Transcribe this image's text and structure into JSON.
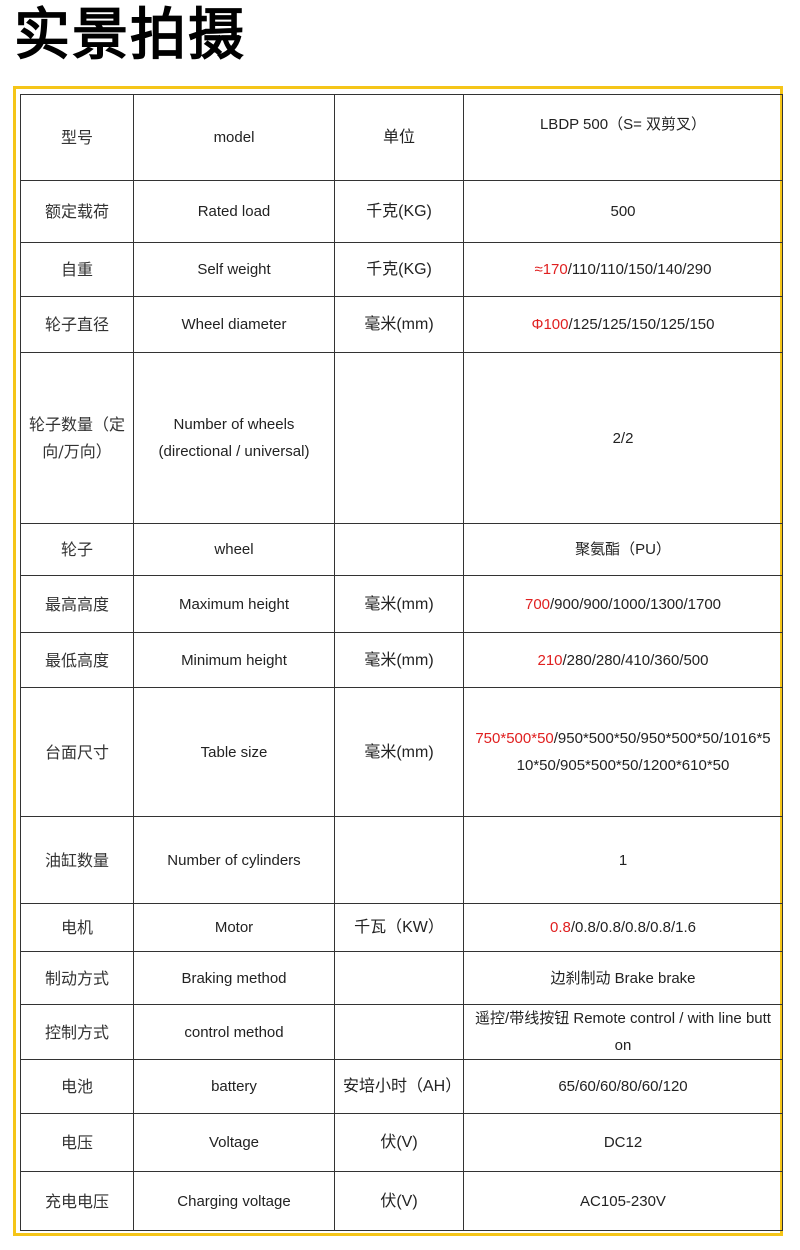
{
  "title": "实景拍摄",
  "colors": {
    "frame": "#f5c518",
    "highlight": "#e02020"
  },
  "rows": [
    {
      "cn": "型号",
      "en": "model",
      "unit": "单位",
      "value_red": "",
      "value": "LBDP 500（S= 双剪叉）"
    },
    {
      "cn": "额定载荷",
      "en": "Rated load",
      "unit": "千克(KG)",
      "value_red": "",
      "value": "500"
    },
    {
      "cn": "自重",
      "en": "Self weight",
      "unit": "千克(KG)",
      "value_red": "≈170",
      "value": "/110/110/150/140/290"
    },
    {
      "cn": "轮子直径",
      "en": "Wheel diameter",
      "unit": "毫米(mm)",
      "value_red": "Φ100",
      "value": "/125/125/150/125/150"
    },
    {
      "cn": "轮子数量（定向/万向）",
      "en": "Number of wheels (directional / universal)",
      "unit": "",
      "value_red": "",
      "value": "2/2"
    },
    {
      "cn": "轮子",
      "en": "wheel",
      "unit": "",
      "value_red": "",
      "value": "聚氨酯（PU）"
    },
    {
      "cn": "最高高度",
      "en": "Maximum height",
      "unit": "毫米(mm)",
      "value_red": "700",
      "value": "/900/900/1000/1300/1700"
    },
    {
      "cn": "最低高度",
      "en": "Minimum height",
      "unit": "毫米(mm)",
      "value_red": "210",
      "value": "/280/280/410/360/500"
    },
    {
      "cn": "台面尺寸",
      "en": "Table size",
      "unit": "毫米(mm)",
      "value_red": "750*500*50",
      "value": "/950*500*50/950*500*50/1016*510*50/905*500*50/1200*610*50"
    },
    {
      "cn": "油缸数量",
      "en": "Number of cylinders",
      "unit": "",
      "value_red": "",
      "value": "1"
    },
    {
      "cn": "电机",
      "en": "Motor",
      "unit": "千瓦（KW）",
      "value_red": "0.8",
      "value": "/0.8/0.8/0.8/0.8/1.6"
    },
    {
      "cn": "制动方式",
      "en": "Braking method",
      "unit": "",
      "value_red": "",
      "value": "边刹制动 Brake brake"
    },
    {
      "cn": "控制方式",
      "en": "control method",
      "unit": "",
      "value_red": "",
      "value": "遥控/带线按钮 Remote control / with line button"
    },
    {
      "cn": "电池",
      "en": "battery",
      "unit": "安培小时（AH）",
      "value_red": "",
      "value": "65/60/60/80/60/120"
    },
    {
      "cn": "电压",
      "en": "Voltage",
      "unit": "伏(V)",
      "value_red": "",
      "value": "DC12"
    },
    {
      "cn": "充电电压",
      "en": "Charging voltage",
      "unit": "伏(V)",
      "value_red": "",
      "value": "AC105-230V"
    }
  ]
}
